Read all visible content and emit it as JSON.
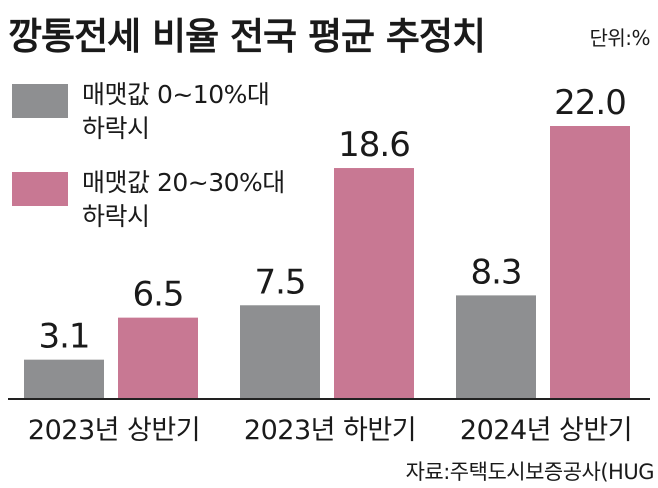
{
  "title": "깡통전세 비율 전국 평균 추정치",
  "unit": "단위:%",
  "source": "자료:주택도시보증공사(HUG",
  "colors": {
    "gray": "#8e8f91",
    "pink": "#c87893"
  },
  "chart_data": {
    "type": "bar",
    "categories": [
      "2023년 상반기",
      "2023년 하반기",
      "2024년 상반기"
    ],
    "series": [
      {
        "name": "매맷값 0~10%대\n하락시",
        "values": [
          3.1,
          7.5,
          8.3
        ],
        "color": "#8e8f91"
      },
      {
        "name": "매맷값 20~30%대\n하락시",
        "values": [
          6.5,
          18.6,
          22.0
        ],
        "color": "#c87893"
      }
    ],
    "value_labels": [
      [
        "3.1",
        "7.5",
        "8.3"
      ],
      [
        "6.5",
        "18.6",
        "22.0"
      ]
    ],
    "ylim": [
      0,
      22.0
    ],
    "legend": "top-left",
    "grid": false
  }
}
